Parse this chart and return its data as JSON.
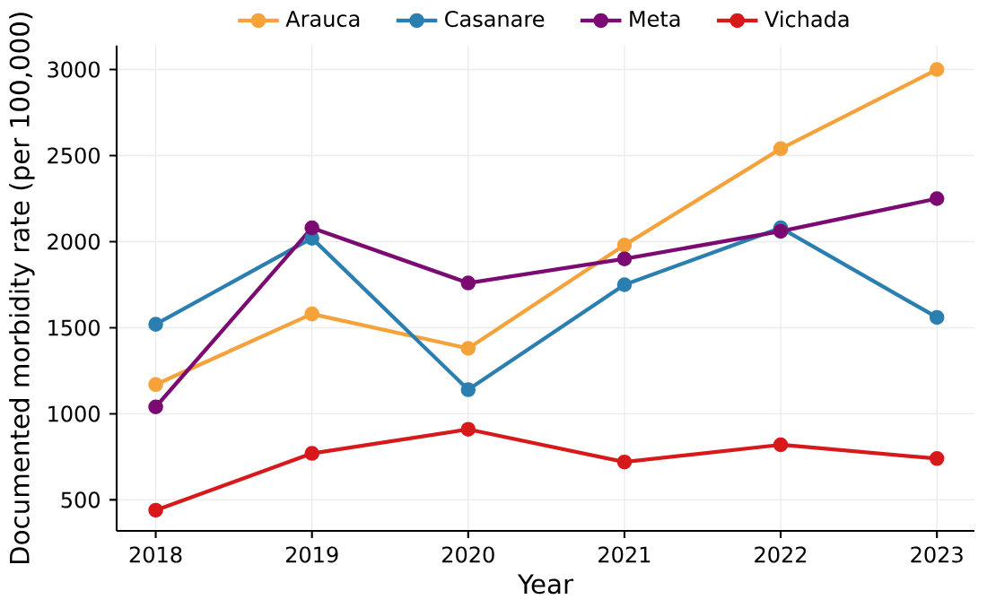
{
  "chart_data": {
    "type": "line",
    "xlabel": "Year",
    "ylabel": "Documented morbidity rate (per 100,000)",
    "x": [
      2018,
      2019,
      2020,
      2021,
      2022,
      2023
    ],
    "series": [
      {
        "name": "Arauca",
        "color": "#f5a23a",
        "values": [
          1170,
          1580,
          1380,
          1980,
          2540,
          3000
        ]
      },
      {
        "name": "Casanare",
        "color": "#2a7fb0",
        "values": [
          1520,
          2020,
          1140,
          1750,
          2080,
          1560
        ]
      },
      {
        "name": "Meta",
        "color": "#7b0a73",
        "values": [
          1040,
          2080,
          1760,
          1900,
          2060,
          2250
        ]
      },
      {
        "name": "Vichada",
        "color": "#d7191c",
        "values": [
          440,
          770,
          910,
          720,
          820,
          740
        ]
      }
    ],
    "xlim": [
      2017.75,
      2023.24
    ],
    "ylim": [
      320,
      3140
    ],
    "xticks": [
      2018,
      2019,
      2020,
      2021,
      2022,
      2023
    ],
    "yticks": [
      500,
      1000,
      1500,
      2000,
      2500,
      3000
    ],
    "grid": true,
    "legend": "top",
    "marker": "circle",
    "line_style": "solid"
  }
}
